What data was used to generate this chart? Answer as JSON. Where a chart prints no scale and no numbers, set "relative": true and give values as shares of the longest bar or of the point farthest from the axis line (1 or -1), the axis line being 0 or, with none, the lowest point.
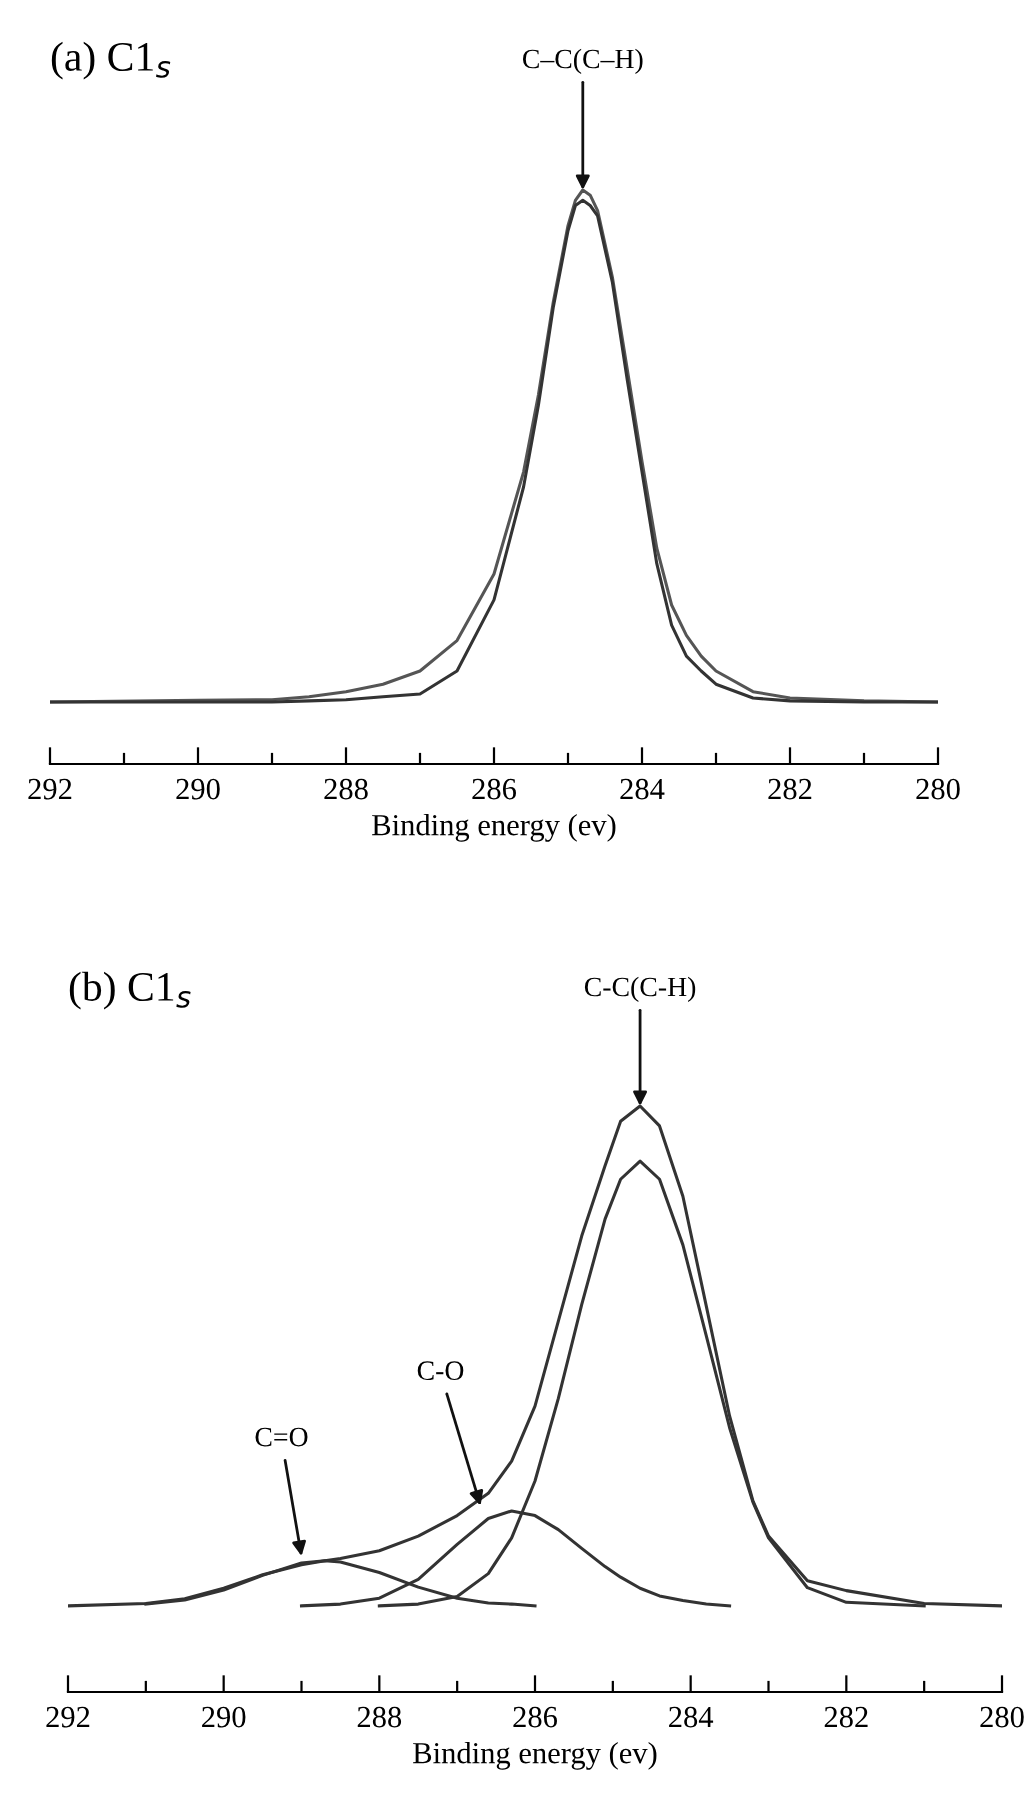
{
  "chart_data": [
    {
      "type": "line",
      "relative": true,
      "title": "(a) C1$_{s}$",
      "xlabel": "Binding energy (ev)",
      "xlim": [
        292,
        280
      ],
      "xticks": [
        292,
        {
          "value": 291,
          "label": null
        },
        290,
        {
          "value": 289,
          "label": null
        },
        288,
        {
          "value": 287,
          "label": null
        },
        286,
        {
          "value": 285,
          "label": null
        },
        284,
        {
          "value": 283,
          "label": null
        },
        282,
        {
          "value": 281,
          "label": null
        },
        280
      ],
      "series": [
        {
          "color": "#555555",
          "x": [
            292,
            290,
            289,
            288.5,
            288,
            287.5,
            287,
            286.5,
            286,
            285.6,
            285.4,
            285.2,
            285,
            284.9,
            284.8,
            284.7,
            284.6,
            284.4,
            284.2,
            284,
            283.8,
            283.6,
            283.4,
            283.2,
            283,
            282.5,
            282,
            281,
            280
          ],
          "values": [
            0.108,
            0.111,
            0.112,
            0.117,
            0.126,
            0.139,
            0.162,
            0.215,
            0.331,
            0.509,
            0.643,
            0.804,
            0.938,
            0.982,
            1.0,
            0.991,
            0.964,
            0.848,
            0.688,
            0.527,
            0.376,
            0.277,
            0.224,
            0.188,
            0.162,
            0.126,
            0.115,
            0.11,
            0.108
          ]
        },
        {
          "color": "#333333",
          "x": [
            292,
            290,
            289,
            288.5,
            288,
            287.5,
            287,
            286.5,
            286,
            285.6,
            285.4,
            285.2,
            285,
            284.9,
            284.8,
            284.7,
            284.6,
            284.4,
            284.2,
            284,
            283.8,
            283.6,
            283.4,
            283.2,
            283,
            282.5,
            282,
            281,
            280
          ],
          "values": [
            0.108,
            0.108,
            0.108,
            0.11,
            0.112,
            0.117,
            0.122,
            0.162,
            0.286,
            0.483,
            0.625,
            0.795,
            0.929,
            0.973,
            0.982,
            0.973,
            0.955,
            0.839,
            0.67,
            0.509,
            0.349,
            0.242,
            0.188,
            0.162,
            0.139,
            0.115,
            0.11,
            0.108,
            0.108
          ]
        }
      ],
      "annotations": [
        {
          "text": "C–C(C–H)",
          "x": 284.8,
          "y": 1.0
        }
      ]
    },
    {
      "type": "line",
      "relative": true,
      "title": "(b) C1$_{s}$",
      "xlabel": "Binding energy (ev)",
      "xlim": [
        292,
        280
      ],
      "xticks": [
        292,
        {
          "value": 291,
          "label": null
        },
        290,
        {
          "value": 289,
          "label": null
        },
        288,
        {
          "value": 287,
          "label": null
        },
        286,
        {
          "value": 285,
          "label": null
        },
        284,
        {
          "value": 283,
          "label": null
        },
        282,
        {
          "value": 281,
          "label": null
        },
        280
      ],
      "series": [
        {
          "color": "#333333",
          "x": [
            292,
            291,
            290.5,
            290,
            289.5,
            289,
            288.7,
            288.5,
            288,
            287.5,
            287,
            286.6,
            286.3,
            286,
            285.7,
            285.4,
            285.1,
            284.9,
            284.65,
            284.4,
            284.1,
            283.8,
            283.5,
            283.2,
            283,
            282.5,
            282,
            281,
            280
          ],
          "values": [
            0.147,
            0.151,
            0.159,
            0.177,
            0.2,
            0.217,
            0.224,
            0.228,
            0.241,
            0.266,
            0.301,
            0.339,
            0.394,
            0.488,
            0.633,
            0.778,
            0.898,
            0.974,
            1.0,
            0.966,
            0.846,
            0.659,
            0.471,
            0.326,
            0.266,
            0.19,
            0.173,
            0.151,
            0.147
          ]
        },
        {
          "color": "#333333",
          "x": [
            288,
            287.5,
            287,
            286.6,
            286.3,
            286,
            285.7,
            285.4,
            285.1,
            284.9,
            284.65,
            284.4,
            284.1,
            283.8,
            283.5,
            283.2,
            283,
            282.5,
            282,
            281
          ],
          "values": [
            0.147,
            0.15,
            0.163,
            0.202,
            0.263,
            0.36,
            0.501,
            0.661,
            0.807,
            0.875,
            0.906,
            0.875,
            0.763,
            0.608,
            0.451,
            0.324,
            0.263,
            0.178,
            0.153,
            0.147
          ]
        },
        {
          "color": "#333333",
          "x": [
            289,
            288.5,
            288,
            287.5,
            287,
            286.6,
            286.3,
            286,
            285.7,
            285.4,
            285.1,
            284.9,
            284.65,
            284.4,
            284.1,
            283.8,
            283.5
          ],
          "values": [
            0.147,
            0.15,
            0.16,
            0.192,
            0.252,
            0.296,
            0.309,
            0.301,
            0.277,
            0.245,
            0.214,
            0.196,
            0.177,
            0.164,
            0.156,
            0.15,
            0.147
          ]
        },
        {
          "color": "#333333",
          "x": [
            291,
            290.5,
            290,
            289.5,
            289,
            288.7,
            288.5,
            288,
            287.5,
            287,
            286.6,
            286.3,
            286
          ],
          "values": [
            0.15,
            0.157,
            0.174,
            0.199,
            0.22,
            0.224,
            0.222,
            0.204,
            0.179,
            0.16,
            0.152,
            0.15,
            0.147
          ]
        }
      ],
      "annotations": [
        {
          "text": "C-C(C-H)",
          "x": 284.65,
          "y": 1.0
        },
        {
          "text": "C-O",
          "x": 286.7,
          "y": 0.318
        },
        {
          "text": "C=O",
          "x": 289.0,
          "y": 0.232
        }
      ]
    }
  ]
}
